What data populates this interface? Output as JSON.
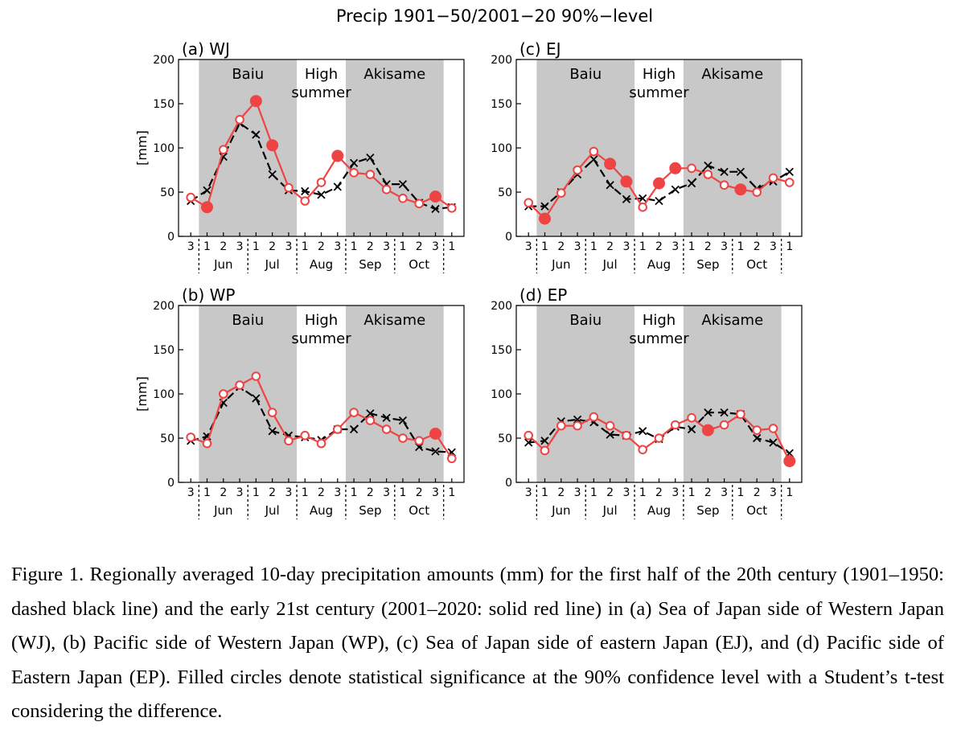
{
  "figure_title": "Precip 1901−50/2001−20 90%−level",
  "caption": "Figure 1. Regionally averaged 10-day precipitation amounts (mm) for the first half of the 20th century (1901–1950: dashed black line) and the early 21st century (2001–2020: solid red line) in (a) Sea of Japan side of Western Japan (WJ), (b) Pacific side of Western Japan (WP), (c) Sea of Japan side of eastern Japan (EJ), and (d) Pacific side of Eastern Japan (EP). Filled circles denote statistical significance at the 90% confidence level with a Student’s t-test considering the difference.",
  "colors": {
    "red": "#ee4444",
    "black": "#000000",
    "shade": "#c8c8c8"
  },
  "chart_data": [
    {
      "type": "line",
      "panel_label": "(a) WJ",
      "ylabel": "[mm]",
      "ylim": [
        0,
        200
      ],
      "yticks": [
        0,
        50,
        100,
        150,
        200
      ],
      "x_dekads": [
        "3",
        "1",
        "2",
        "3",
        "1",
        "2",
        "3",
        "1",
        "2",
        "3",
        "1",
        "2",
        "3",
        "1",
        "2",
        "3",
        "1"
      ],
      "months": [
        "Jun",
        "Jul",
        "Aug",
        "Sep",
        "Oct"
      ],
      "shaded_periods": [
        {
          "label": "Baiu",
          "from_dekad_index": 1,
          "to_dekad_index": 7
        },
        {
          "label": "Akisame",
          "from_dekad_index": 10,
          "to_dekad_index": 16
        }
      ],
      "unshaded_period_label": [
        "High",
        "summer"
      ],
      "series": [
        {
          "years": "1901–1950",
          "style": "dashed-black-x",
          "values": [
            40,
            52,
            90,
            128,
            115,
            70,
            52,
            51,
            47,
            56,
            83,
            89,
            59,
            59,
            38,
            31,
            33
          ]
        },
        {
          "years": "2001–2020",
          "style": "solid-red-circle",
          "values": [
            44,
            33,
            98,
            132,
            153,
            103,
            55,
            40,
            61,
            91,
            72,
            70,
            53,
            43,
            37,
            45,
            32
          ],
          "significant": [
            false,
            true,
            false,
            false,
            true,
            true,
            false,
            false,
            false,
            true,
            false,
            false,
            false,
            false,
            false,
            true,
            false
          ]
        }
      ]
    },
    {
      "type": "line",
      "panel_label": "(c) EJ",
      "ylabel": "",
      "ylim": [
        0,
        200
      ],
      "yticks": [
        0,
        50,
        100,
        150,
        200
      ],
      "x_dekads": [
        "3",
        "1",
        "2",
        "3",
        "1",
        "2",
        "3",
        "1",
        "2",
        "3",
        "1",
        "2",
        "3",
        "1",
        "2",
        "3",
        "1"
      ],
      "months": [
        "Jun",
        "Jul",
        "Aug",
        "Sep",
        "Oct"
      ],
      "shaded_periods": [
        {
          "label": "Baiu",
          "from_dekad_index": 1,
          "to_dekad_index": 7
        },
        {
          "label": "Akisame",
          "from_dekad_index": 10,
          "to_dekad_index": 16
        }
      ],
      "unshaded_period_label": [
        "High",
        "summer"
      ],
      "series": [
        {
          "years": "1901–1950",
          "style": "dashed-black-x",
          "values": [
            34,
            34,
            50,
            70,
            87,
            58,
            42,
            43,
            40,
            53,
            60,
            80,
            73,
            73,
            54,
            62,
            73
          ]
        },
        {
          "years": "2001–2020",
          "style": "solid-red-circle",
          "values": [
            38,
            20,
            49,
            75,
            96,
            82,
            62,
            33,
            60,
            77,
            77,
            70,
            58,
            53,
            50,
            66,
            61
          ],
          "significant": [
            false,
            true,
            false,
            false,
            false,
            true,
            true,
            false,
            true,
            true,
            false,
            false,
            false,
            true,
            false,
            false,
            false
          ]
        }
      ]
    },
    {
      "type": "line",
      "panel_label": "(b) WP",
      "ylabel": "[mm]",
      "ylim": [
        0,
        200
      ],
      "yticks": [
        0,
        50,
        100,
        150,
        200
      ],
      "x_dekads": [
        "3",
        "1",
        "2",
        "3",
        "1",
        "2",
        "3",
        "1",
        "2",
        "3",
        "1",
        "2",
        "3",
        "1",
        "2",
        "3",
        "1"
      ],
      "months": [
        "Jun",
        "Jul",
        "Aug",
        "Sep",
        "Oct"
      ],
      "shaded_periods": [
        {
          "label": "Baiu",
          "from_dekad_index": 1,
          "to_dekad_index": 7
        },
        {
          "label": "Akisame",
          "from_dekad_index": 10,
          "to_dekad_index": 16
        }
      ],
      "unshaded_period_label": [
        "High",
        "summer"
      ],
      "series": [
        {
          "years": "1901–1950",
          "style": "dashed-black-x",
          "values": [
            47,
            52,
            90,
            108,
            95,
            58,
            53,
            51,
            48,
            60,
            60,
            78,
            73,
            70,
            40,
            35,
            34
          ]
        },
        {
          "years": "2001–2020",
          "style": "solid-red-circle",
          "values": [
            51,
            44,
            100,
            110,
            120,
            79,
            47,
            53,
            44,
            60,
            79,
            70,
            60,
            50,
            47,
            55,
            27
          ],
          "significant": [
            false,
            false,
            false,
            false,
            false,
            false,
            false,
            false,
            false,
            false,
            false,
            false,
            false,
            false,
            false,
            true,
            false
          ]
        }
      ]
    },
    {
      "type": "line",
      "panel_label": "(d) EP",
      "ylabel": "",
      "ylim": [
        0,
        200
      ],
      "yticks": [
        0,
        50,
        100,
        150,
        200
      ],
      "x_dekads": [
        "3",
        "1",
        "2",
        "3",
        "1",
        "2",
        "3",
        "1",
        "2",
        "3",
        "1",
        "2",
        "3",
        "1",
        "2",
        "3",
        "1"
      ],
      "months": [
        "Jun",
        "Jul",
        "Aug",
        "Sep",
        "Oct"
      ],
      "shaded_periods": [
        {
          "label": "Baiu",
          "from_dekad_index": 1,
          "to_dekad_index": 7
        },
        {
          "label": "Akisame",
          "from_dekad_index": 10,
          "to_dekad_index": 16
        }
      ],
      "unshaded_period_label": [
        "High",
        "summer"
      ],
      "series": [
        {
          "years": "1901–1950",
          "style": "dashed-black-x",
          "values": [
            45,
            47,
            69,
            71,
            68,
            54,
            53,
            58,
            49,
            63,
            60,
            79,
            79,
            77,
            50,
            45,
            33
          ]
        },
        {
          "years": "2001–2020",
          "style": "solid-red-circle",
          "values": [
            53,
            36,
            64,
            64,
            74,
            64,
            53,
            37,
            50,
            65,
            73,
            59,
            65,
            77,
            59,
            61,
            24
          ],
          "significant": [
            false,
            false,
            false,
            false,
            false,
            false,
            false,
            false,
            false,
            false,
            false,
            true,
            false,
            false,
            false,
            false,
            true
          ]
        }
      ]
    }
  ]
}
